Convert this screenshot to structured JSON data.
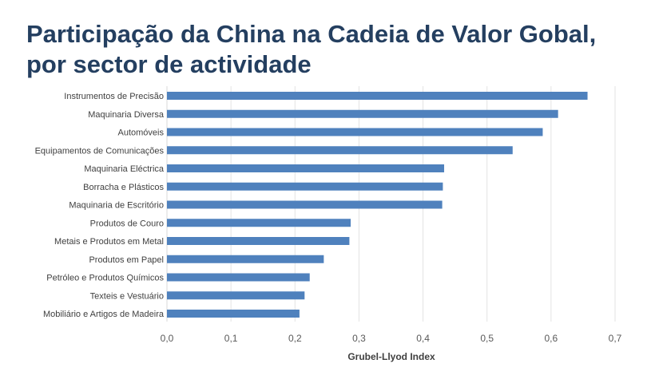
{
  "title_line1": "Participação da China na Cadeia de Valor Gobal,",
  "title_line2": "por sector de actividade",
  "chart_data": {
    "type": "bar",
    "orientation": "horizontal",
    "categories": [
      "Instrumentos de Precisão",
      "Maquinaria Diversa",
      "Automóveis",
      "Equipamentos de Comunicações",
      "Maquinaria Eléctrica",
      "Borracha e Plásticos",
      "Maquinaria de Escritório",
      "Produtos de Couro",
      "Metais e Produtos em Metal",
      "Produtos em Papel",
      "Petróleo e Produtos Químicos",
      "Texteis e Vestuário",
      "Mobiliário e Artigos de Madeira"
    ],
    "values": [
      0.657,
      0.611,
      0.587,
      0.54,
      0.433,
      0.431,
      0.43,
      0.287,
      0.285,
      0.245,
      0.223,
      0.215,
      0.207
    ],
    "xlabel": "Grubel-Llyod Index",
    "ylabel": "",
    "xlim": [
      0,
      0.7
    ],
    "xticks": [
      "0,0",
      "0,1",
      "0,2",
      "0,3",
      "0,4",
      "0,5",
      "0,6",
      "0,7"
    ],
    "grid": true,
    "bar_color": "#4f81bd",
    "grid_color": "#e3e3e3"
  }
}
